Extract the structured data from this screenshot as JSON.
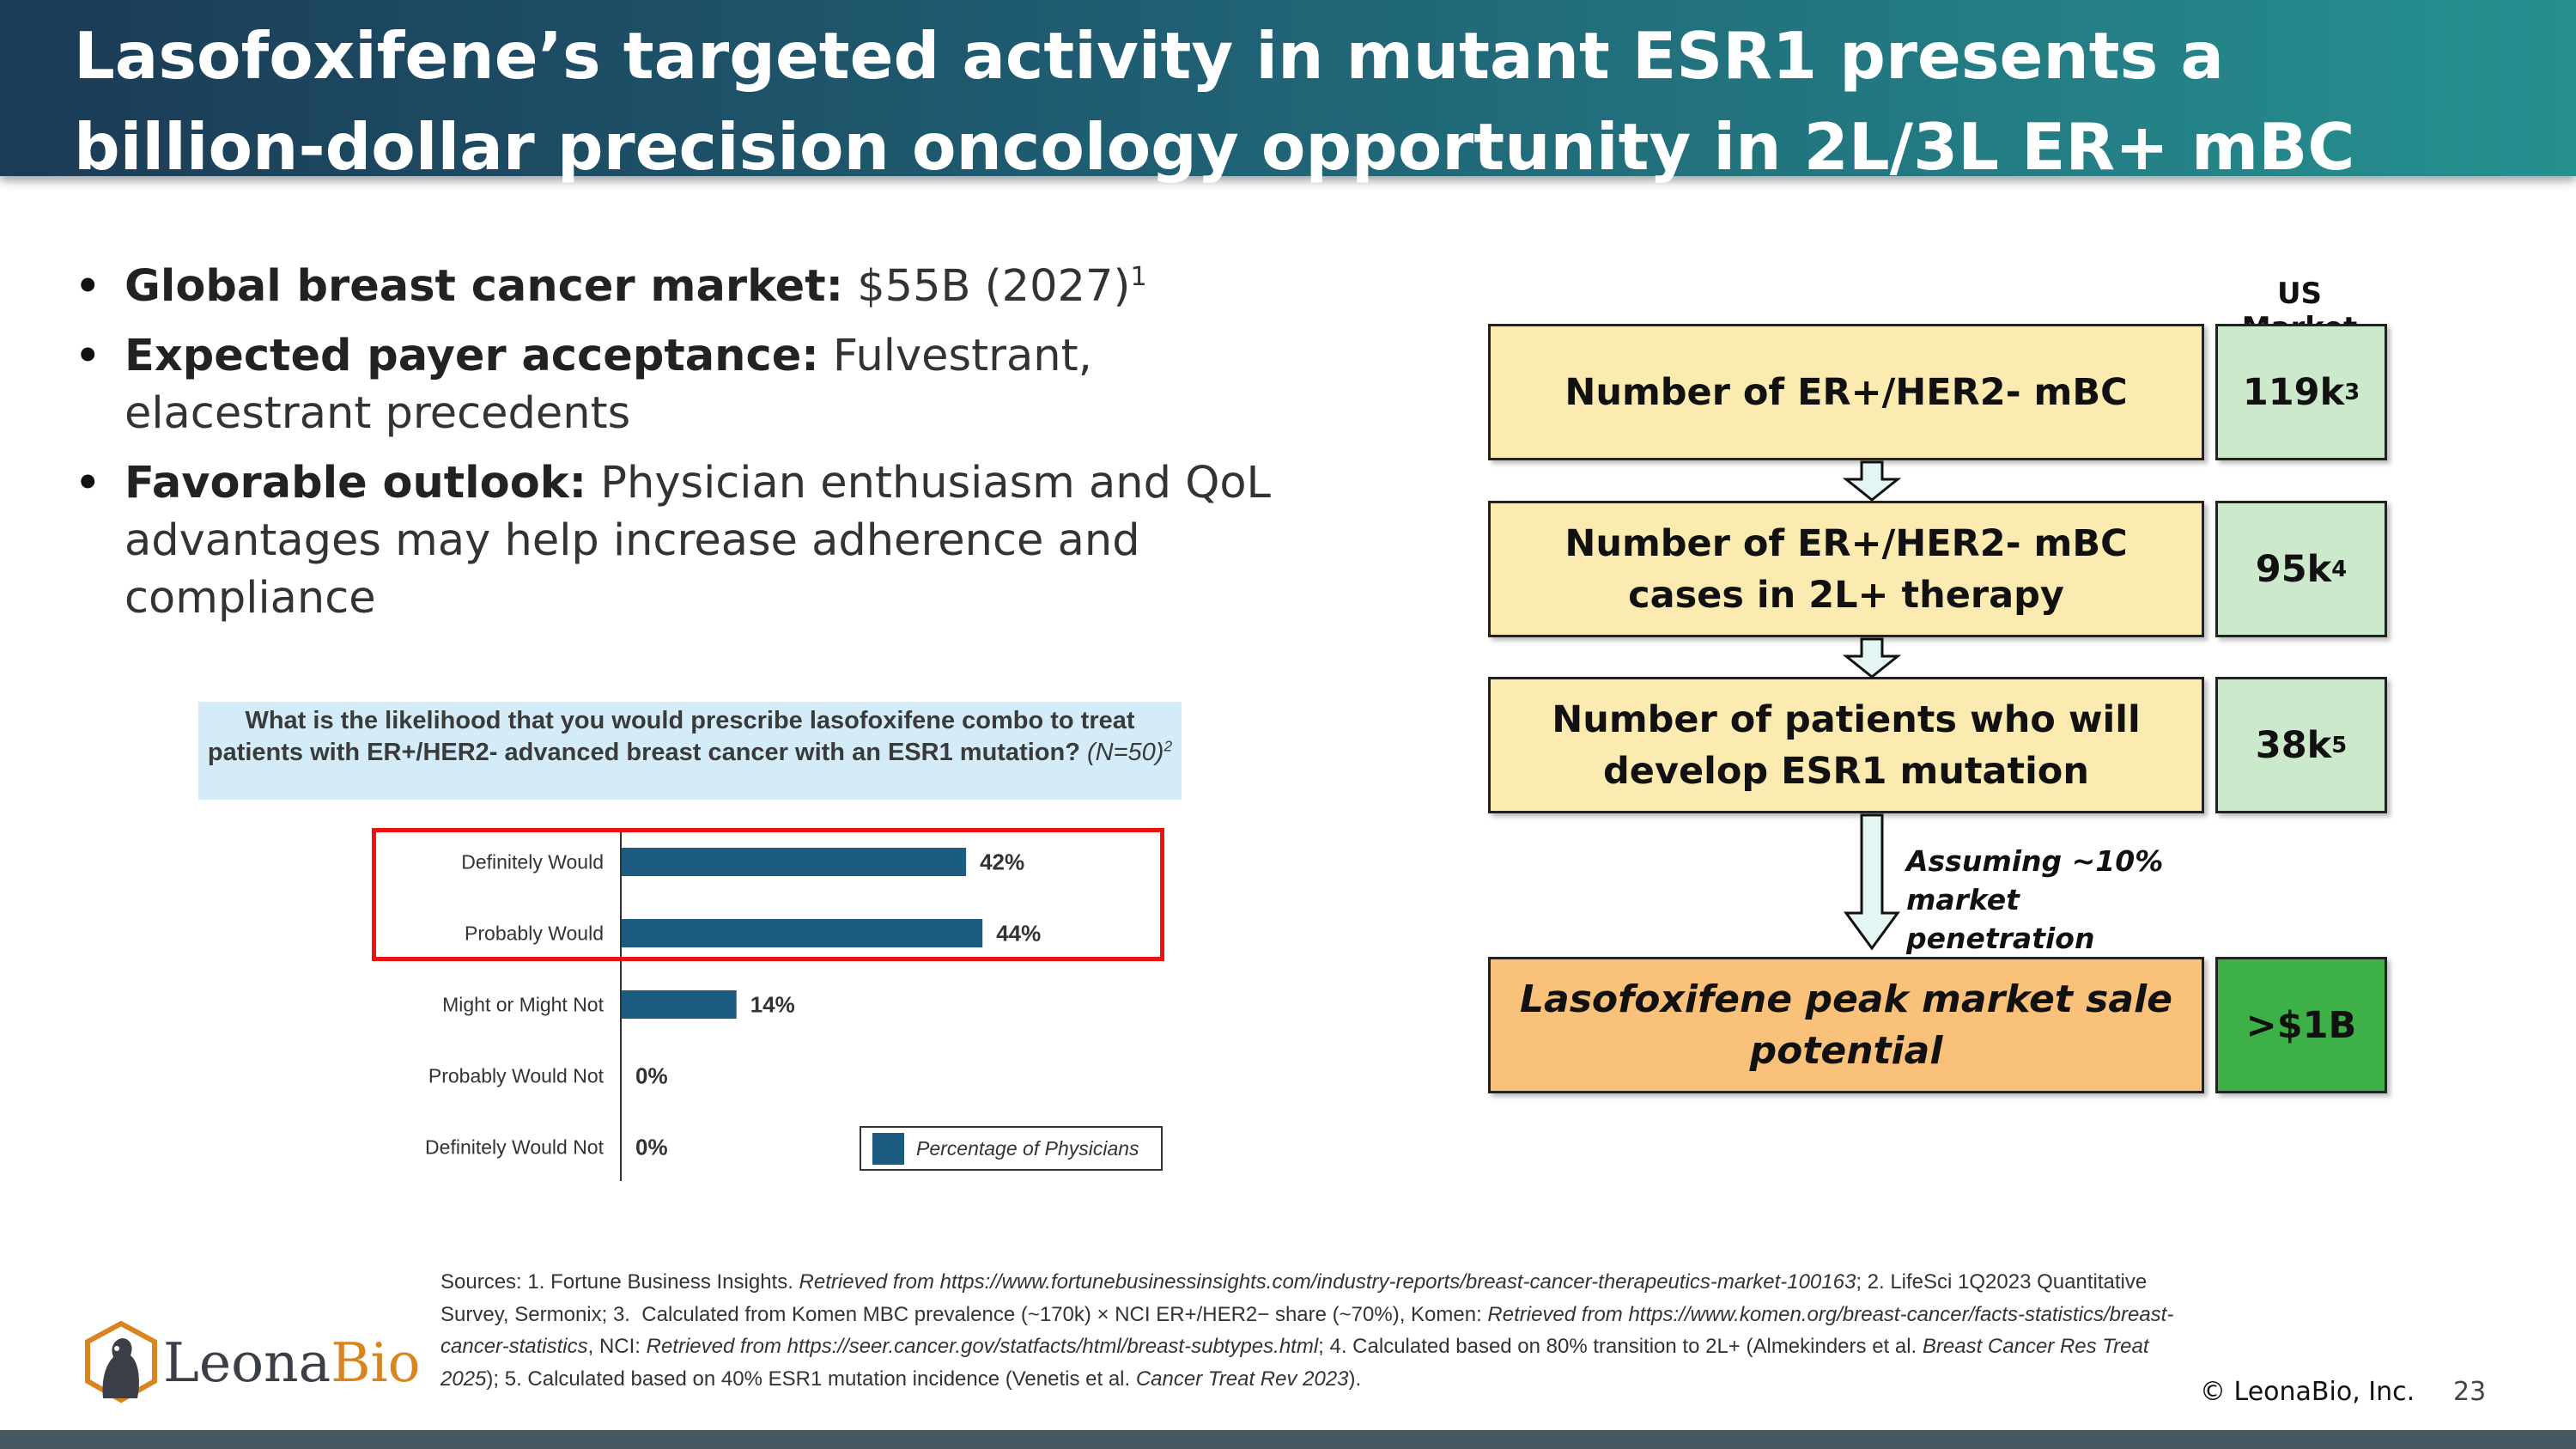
{
  "title": "Lasofoxifene’s targeted activity in mutant ESR1 presents a billion-dollar precision oncology opportunity in 2L/3L ER+ mBC",
  "bullets": [
    {
      "bold": "Global breast cancer market:",
      "text": " $55B (2027)",
      "sup": "1"
    },
    {
      "bold": "Expected payer acceptance:",
      "text": " Fulvestrant, elacestrant precedents",
      "sup": ""
    },
    {
      "bold": "Favorable outlook:",
      "text": " Physician enthusiasm and QoL advantages may help increase adherence and compliance",
      "sup": ""
    }
  ],
  "survey": {
    "question": "What is the likelihood that you would prescribe lasofoxifene combo to treat patients with ER+/HER2- advanced breast cancer with an ESR1 mutation?",
    "n_label": "(N=50)",
    "n_sup": "2",
    "legend": "Percentage of Physicians"
  },
  "chart_data": {
    "type": "bar",
    "orientation": "horizontal",
    "categories": [
      "Definitely Would",
      "Probably Would",
      "Might or Might Not",
      "Probably Would Not",
      "Definitely Would Not"
    ],
    "series": [
      {
        "name": "Percentage of Physicians",
        "values": [
          42,
          44,
          14,
          0,
          0
        ]
      }
    ],
    "data_labels": [
      "42%",
      "44%",
      "14%",
      "0%",
      "0%"
    ],
    "xlim": [
      0,
      100
    ],
    "bar_color": "#1b5c80",
    "highlighted_categories": [
      "Definitely Would",
      "Probably Would"
    ],
    "highlight_color": "#e11111",
    "legend_position": "bottom-right"
  },
  "funnel": {
    "column_header": "US Market",
    "steps": [
      {
        "label": "Number of ER+/HER2- mBC",
        "value": "119k",
        "sup": "3"
      },
      {
        "label": "Number of ER+/HER2- mBC cases in 2L+ therapy",
        "value": "95k",
        "sup": "4"
      },
      {
        "label": "Number of patients who will develop ESR1 mutation",
        "value": "38k",
        "sup": "5"
      }
    ],
    "assumption": "Assuming ~10% market penetration",
    "final": {
      "label": "Lasofoxifene peak market sale potential",
      "value": ">$1B"
    }
  },
  "footer": {
    "sources_html": "Sources: 1. Fortune Business Insights. <i>Retrieved from https://www.fortunebusinessinsights.com/industry-reports/breast-cancer-therapeutics-market-100163</i>; 2. LifeSci 1Q2023 Quantitative Survey, Sermonix; 3.&nbsp; Calculated from Komen MBC prevalence (~170k) × NCI ER+/HER2− share (~70%), Komen: <i>Retrieved from https://www.komen.org/breast-cancer/facts-statistics/breast-cancer-statistics</i>, NCI: <i>Retrieved from https://seer.cancer.gov/statfacts/html/breast-subtypes.html</i>; 4. Calculated based on 80% transition to 2L+ (Almekinders et al. <i>Breast Cancer Res Treat 2025</i>); 5. Calculated based on 40% ESR1 mutation incidence (Venetis et al. <i>Cancer Treat Rev 2023</i>).",
    "logo_part1": "Leona",
    "logo_part2": "Bio",
    "copyright": "© LeonaBio, Inc.",
    "page_number": "23"
  },
  "colors": {
    "title_gradient": [
      "#1b3b56",
      "#26908f"
    ],
    "funnel_box": "#fcebb1",
    "funnel_final": "#f9c17a",
    "value_box": "#cde9cc",
    "value_final": "#3db048",
    "logo_orange": "#d9841f"
  }
}
